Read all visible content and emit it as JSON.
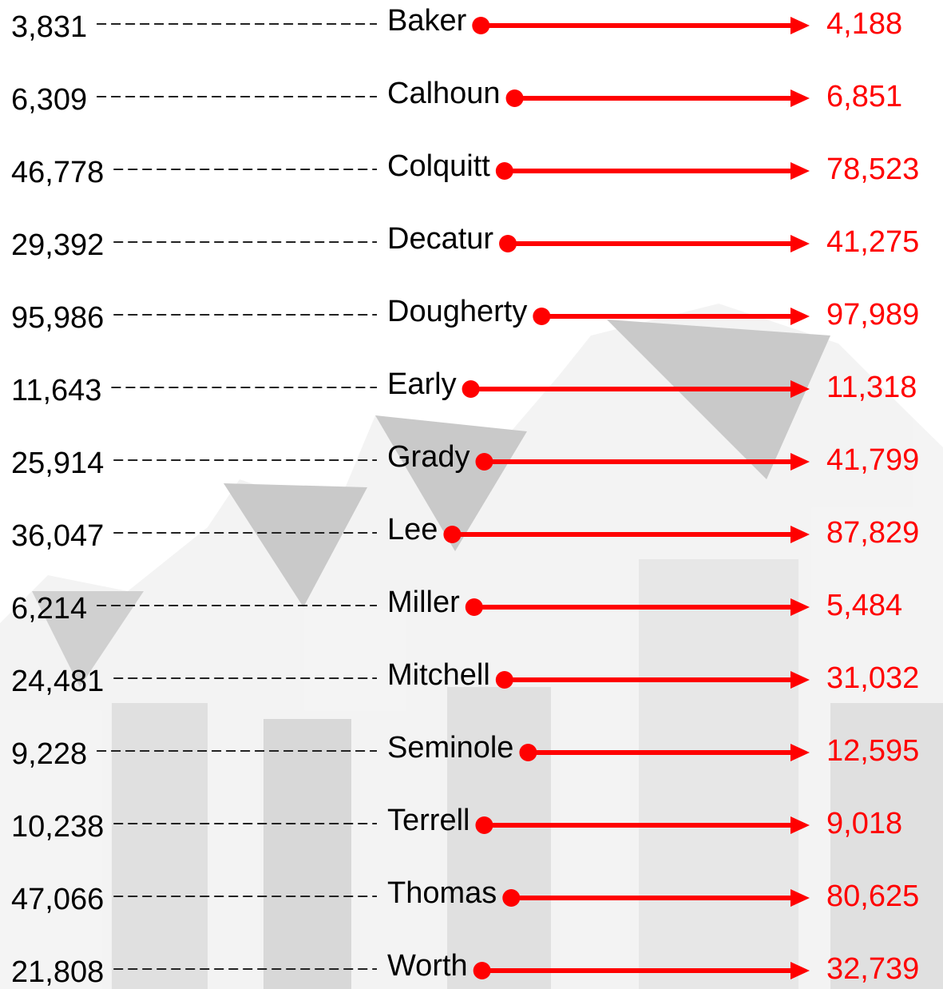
{
  "rows": [
    {
      "before": "3,831",
      "name": "Baker",
      "after": "4,188"
    },
    {
      "before": "6,309",
      "name": "Calhoun",
      "after": "6,851"
    },
    {
      "before": "46,778",
      "name": "Colquitt",
      "after": "78,523"
    },
    {
      "before": "29,392",
      "name": "Decatur",
      "after": "41,275"
    },
    {
      "before": "95,986",
      "name": "Dougherty",
      "after": "97,989"
    },
    {
      "before": "11,643",
      "name": "Early",
      "after": "11,318"
    },
    {
      "before": "25,914",
      "name": "Grady",
      "after": "41,799"
    },
    {
      "before": "36,047",
      "name": "Lee",
      "after": "87,829"
    },
    {
      "before": "6,214",
      "name": "Miller",
      "after": "5,484"
    },
    {
      "before": "24,481",
      "name": "Mitchell",
      "after": "31,032"
    },
    {
      "before": "9,228",
      "name": "Seminole",
      "after": "12,595"
    },
    {
      "before": "10,238",
      "name": "Terrell",
      "after": "9,018"
    },
    {
      "before": "47,066",
      "name": "Thomas",
      "after": "80,625"
    },
    {
      "before": "21,808",
      "name": "Worth",
      "after": "32,739"
    }
  ]
}
